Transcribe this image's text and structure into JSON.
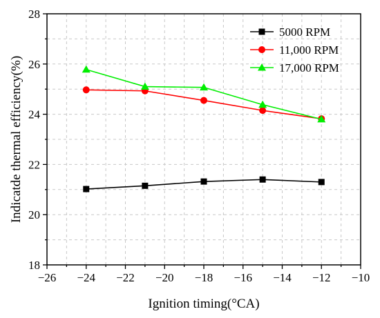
{
  "chart_data": {
    "type": "line",
    "title": "",
    "xlabel": "Ignition timing(°CA)",
    "ylabel": "Indicatde thermal efficiency(%)",
    "xlim": [
      -26,
      -10
    ],
    "ylim": [
      18,
      28
    ],
    "xticks": [
      -26,
      -24,
      -22,
      -20,
      -18,
      -16,
      -14,
      -12,
      -10
    ],
    "yticks": [
      18,
      20,
      22,
      24,
      26,
      28
    ],
    "x_tick_labels": [
      "−26",
      "−24",
      "−22",
      "−20",
      "−18",
      "−16",
      "−14",
      "−12",
      "−10"
    ],
    "y_tick_labels": [
      "18",
      "20",
      "22",
      "24",
      "26",
      "28"
    ],
    "grid": true,
    "legend_position": "top-right",
    "x": [
      -24,
      -21,
      -18,
      -15,
      -12
    ],
    "series": [
      {
        "name": "5000  RPM",
        "values": [
          21.02,
          21.15,
          21.32,
          21.4,
          21.3
        ],
        "color": "#000000",
        "marker": "square"
      },
      {
        "name": "11,000 RPM",
        "values": [
          24.97,
          24.93,
          24.55,
          24.15,
          23.82
        ],
        "color": "#ff0000",
        "marker": "circle"
      },
      {
        "name": "17,000 RPM",
        "values": [
          25.78,
          25.1,
          25.07,
          24.38,
          23.8
        ],
        "color": "#00ee00",
        "marker": "triangle"
      }
    ]
  }
}
